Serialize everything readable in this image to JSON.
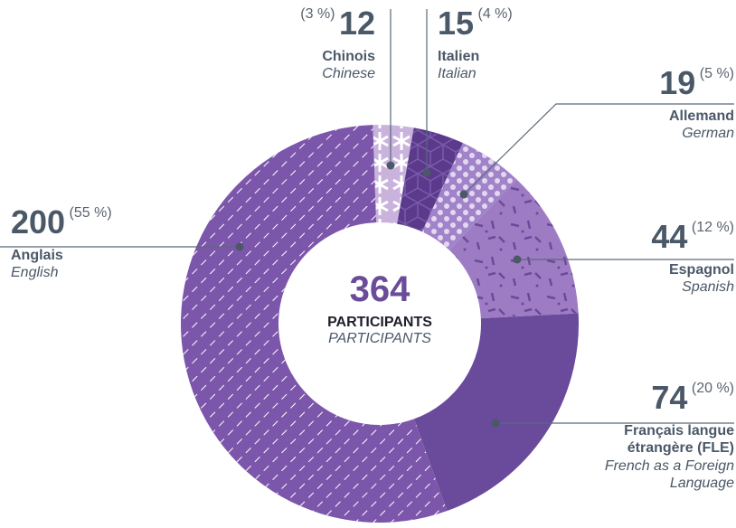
{
  "chart_data": {
    "type": "donut",
    "categories": [
      "Chinois",
      "Italien",
      "Allemand",
      "Espagnol",
      "Français langue étrangère (FLE)",
      "Anglais"
    ],
    "categories_en": [
      "Chinese",
      "Italian",
      "German",
      "Spanish",
      "French as a Foreign Language",
      "English"
    ],
    "values": [
      12,
      15,
      19,
      44,
      74,
      200
    ],
    "percent_labels": [
      "(3 %)",
      "(4 %)",
      "(5 %)",
      "(12 %)",
      "(20 %)",
      "(55 %)"
    ],
    "colors": [
      "#c9b3dc",
      "#5b3a8c",
      "#a183c9",
      "#9e7cc4",
      "#6a4a9a",
      "#7c56aa"
    ],
    "total": 364,
    "total_label": "PARTICIPANTS",
    "total_label_en": "PARTICIPANTS"
  }
}
